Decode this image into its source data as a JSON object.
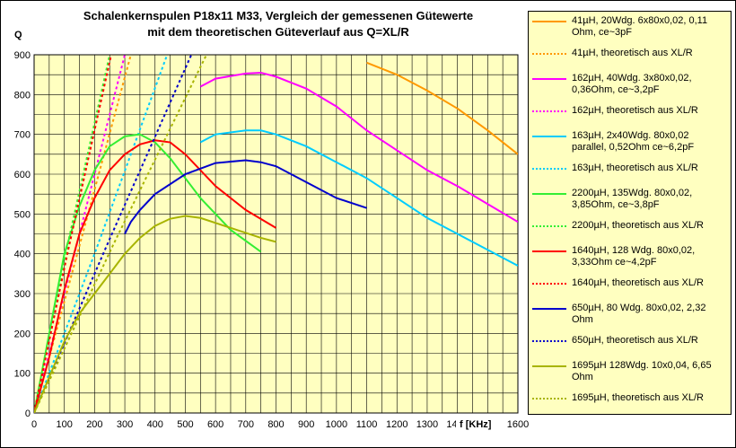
{
  "chart_data": {
    "type": "line",
    "title": "Schalenkernspulen P18x11 M33, Vergleich der gemessenen Gütewerte",
    "subtitle": "mit dem theoretischen Güteverlauf aus Q=XL/R",
    "y_label": "Q",
    "x_label": "f [KHz]",
    "xlim": [
      0,
      1600
    ],
    "ylim": [
      0,
      900
    ],
    "xticks": [
      0,
      100,
      200,
      300,
      400,
      500,
      600,
      700,
      800,
      900,
      1000,
      1100,
      1200,
      1300,
      1400,
      1500,
      1600
    ],
    "yticks": [
      0,
      100,
      200,
      300,
      400,
      500,
      600,
      700,
      800,
      900
    ],
    "minor_xticks": [
      50,
      150,
      250,
      350,
      450,
      550,
      650,
      750,
      850,
      950,
      1050,
      1150,
      1250,
      1350,
      1450,
      1550
    ],
    "minor_yticks": [
      50,
      150,
      250,
      350,
      450,
      550,
      650,
      750,
      850
    ],
    "grid": true,
    "series": [
      {
        "name": "41µH, 20Wdg. 6x80x0,02, 0,11 Ohm, ce~3pF",
        "color": "#ff9900",
        "style": "solid",
        "x": [
          1100,
          1200,
          1300,
          1400,
          1500,
          1600
        ],
        "values": [
          880,
          850,
          810,
          765,
          710,
          650
        ]
      },
      {
        "name": "41µH, theoretisch aus XL/R",
        "color": "#ff9900",
        "style": "dotted",
        "x": [
          0,
          150,
          320
        ],
        "values": [
          0,
          420,
          900
        ]
      },
      {
        "name": "162µH, 40Wdg. 3x80x0,02, 0,36Ohm, ce~3,2pF",
        "color": "#ff00ff",
        "style": "solid",
        "x": [
          550,
          600,
          700,
          750,
          800,
          900,
          1000,
          1100,
          1200,
          1300,
          1400,
          1500,
          1600
        ],
        "values": [
          820,
          840,
          853,
          855,
          845,
          815,
          770,
          710,
          660,
          610,
          570,
          525,
          480
        ]
      },
      {
        "name": "162µH, theoretisch aus XL/R",
        "color": "#ff00ff",
        "style": "dotted",
        "x": [
          0,
          140,
          300
        ],
        "values": [
          0,
          420,
          900
        ]
      },
      {
        "name": "163µH, 2x40Wdg. 80x0,02 parallel, 0,52Ohm ce~6,2pF",
        "color": "#00ccff",
        "style": "solid",
        "x": [
          550,
          600,
          700,
          750,
          800,
          900,
          1000,
          1100,
          1200,
          1300,
          1400,
          1500,
          1600
        ],
        "values": [
          680,
          700,
          710,
          710,
          700,
          670,
          630,
          590,
          540,
          490,
          450,
          410,
          370
        ]
      },
      {
        "name": "163µH, theoretisch aus XL/R",
        "color": "#00ccff",
        "style": "dotted",
        "x": [
          0,
          200,
          440
        ],
        "values": [
          0,
          400,
          900
        ]
      },
      {
        "name": "2200µH, 135Wdg. 80x0,02, 3,85Ohm, ce~3,8pF",
        "color": "#33ee33",
        "style": "solid",
        "x": [
          0,
          50,
          100,
          150,
          200,
          250,
          300,
          350,
          400,
          450,
          500,
          550,
          650,
          750
        ],
        "values": [
          0,
          200,
          400,
          520,
          610,
          670,
          695,
          700,
          680,
          640,
          590,
          540,
          460,
          405
        ]
      },
      {
        "name": "2200µH, theoretisch aus XL/R",
        "color": "#33ee33",
        "style": "dotted",
        "x": [
          0,
          110,
          250
        ],
        "values": [
          0,
          420,
          900
        ]
      },
      {
        "name": "1640µH, 128 Wdg. 80x0,02, 3,33Ohm ce~4,2pF",
        "color": "#ff0000",
        "style": "solid",
        "x": [
          0,
          50,
          100,
          150,
          200,
          250,
          300,
          350,
          400,
          450,
          500,
          600,
          700,
          800
        ],
        "values": [
          0,
          140,
          310,
          450,
          540,
          610,
          650,
          675,
          685,
          680,
          650,
          570,
          510,
          465
        ]
      },
      {
        "name": "1640µH, theoretisch aus XL/R",
        "color": "#ff0000",
        "style": "dotted",
        "x": [
          0,
          110,
          255
        ],
        "values": [
          0,
          400,
          900
        ]
      },
      {
        "name": "650µH, 80 Wdg. 80x0,02, 2,32 Ohm",
        "color": "#0000cc",
        "style": "solid",
        "x": [
          300,
          320,
          350,
          400,
          500,
          600,
          700,
          750,
          800,
          900,
          1000,
          1100
        ],
        "values": [
          450,
          480,
          510,
          550,
          600,
          628,
          635,
          630,
          620,
          580,
          540,
          515
        ]
      },
      {
        "name": "650µH, theoretisch aus XL/R",
        "color": "#0000cc",
        "style": "dotted",
        "x": [
          0,
          240,
          520
        ],
        "values": [
          0,
          420,
          900
        ]
      },
      {
        "name": "1695µH 128Wdg. 10x0,04, 6,65 Ohm",
        "color": "#a8b400",
        "style": "solid",
        "x": [
          0,
          50,
          100,
          150,
          200,
          250,
          300,
          350,
          400,
          450,
          500,
          550,
          650,
          750,
          800
        ],
        "values": [
          0,
          90,
          180,
          250,
          300,
          350,
          400,
          440,
          470,
          488,
          495,
          490,
          465,
          440,
          430
        ]
      },
      {
        "name": "1695µH, theoretisch aus XL/R",
        "color": "#a8b400",
        "style": "dotted",
        "x": [
          0,
          260,
          570
        ],
        "values": [
          0,
          420,
          900
        ]
      }
    ]
  }
}
